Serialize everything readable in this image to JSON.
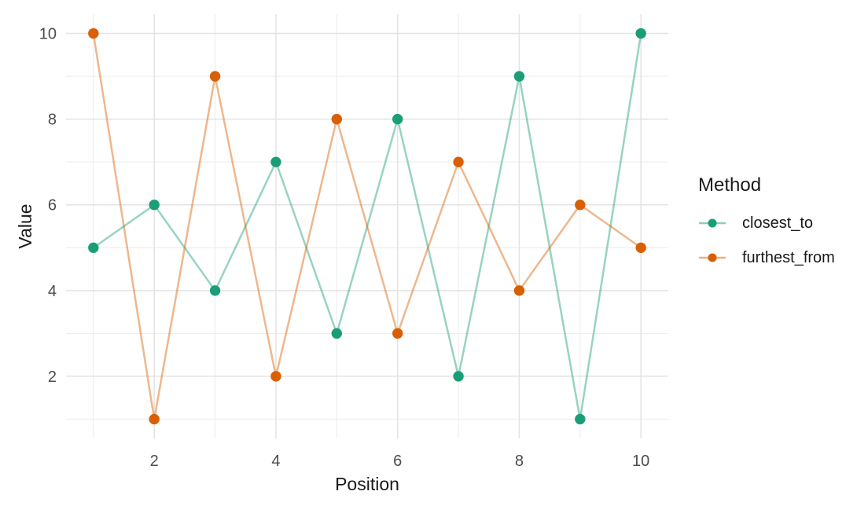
{
  "chart_data": {
    "type": "line",
    "xlabel": "Position",
    "ylabel": "Value",
    "x": [
      1,
      2,
      3,
      4,
      5,
      6,
      7,
      8,
      9,
      10
    ],
    "series": [
      {
        "name": "closest_to",
        "color": "#1B9E77",
        "values": [
          5,
          6,
          4,
          7,
          3,
          8,
          2,
          9,
          1,
          10
        ]
      },
      {
        "name": "furthest_from",
        "color": "#D95F02",
        "values": [
          10,
          1,
          9,
          2,
          8,
          3,
          7,
          4,
          6,
          5
        ]
      }
    ],
    "legend": {
      "title": "Method",
      "position": "right"
    },
    "axes": {
      "x_major_ticks": [
        2,
        4,
        6,
        8,
        10
      ],
      "x_minor_ticks": [
        1,
        3,
        5,
        7,
        9
      ],
      "y_major_ticks": [
        2,
        4,
        6,
        8,
        10
      ],
      "y_minor_ticks": [
        1,
        3,
        5,
        7,
        9
      ],
      "xlim": [
        0.55,
        10.45
      ],
      "ylim": [
        0.55,
        10.45
      ],
      "grid": "on"
    },
    "style": {
      "background": "#FFFFFF",
      "grid_major_color": "#E3E3E3",
      "grid_minor_color": "#EDEDED",
      "tick_label_color": "#4D4D4D",
      "axis_title_color": "#1A1A1A",
      "legend_text_color": "#1A1A1A",
      "line_opacity": 0.45,
      "line_width": 2.5,
      "point_radius": 6.7
    }
  }
}
